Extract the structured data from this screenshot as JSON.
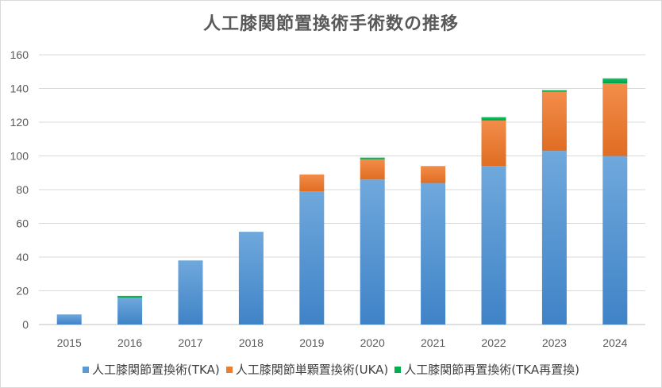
{
  "chart_data": {
    "type": "bar",
    "stacked": true,
    "title": "人工膝関節置換術手術数の推移",
    "xlabel": "",
    "ylabel": "",
    "categories": [
      "2015",
      "2016",
      "2017",
      "2018",
      "2019",
      "2020",
      "2021",
      "2022",
      "2023",
      "2024"
    ],
    "ylim": [
      0,
      160
    ],
    "yticks": [
      "0",
      "20",
      "40",
      "60",
      "80",
      "100",
      "120",
      "140",
      "160"
    ],
    "grid": true,
    "legend_position": "bottom",
    "series": [
      {
        "name": "人工膝関節置換術(TKA)",
        "color": "#5b9bd5",
        "values": [
          6,
          16,
          38,
          55,
          79,
          86,
          84,
          94,
          103,
          100
        ]
      },
      {
        "name": "人工膝関節単顆置換術(UKA)",
        "color": "#ed7d31",
        "values": [
          0,
          0,
          0,
          0,
          10,
          12,
          10,
          27,
          35,
          43
        ]
      },
      {
        "name": "人工膝関節再置換術(TKA再置換)",
        "color": "#00b050",
        "values": [
          0,
          1,
          0,
          0,
          0,
          1,
          0,
          2,
          1,
          3
        ]
      }
    ]
  }
}
